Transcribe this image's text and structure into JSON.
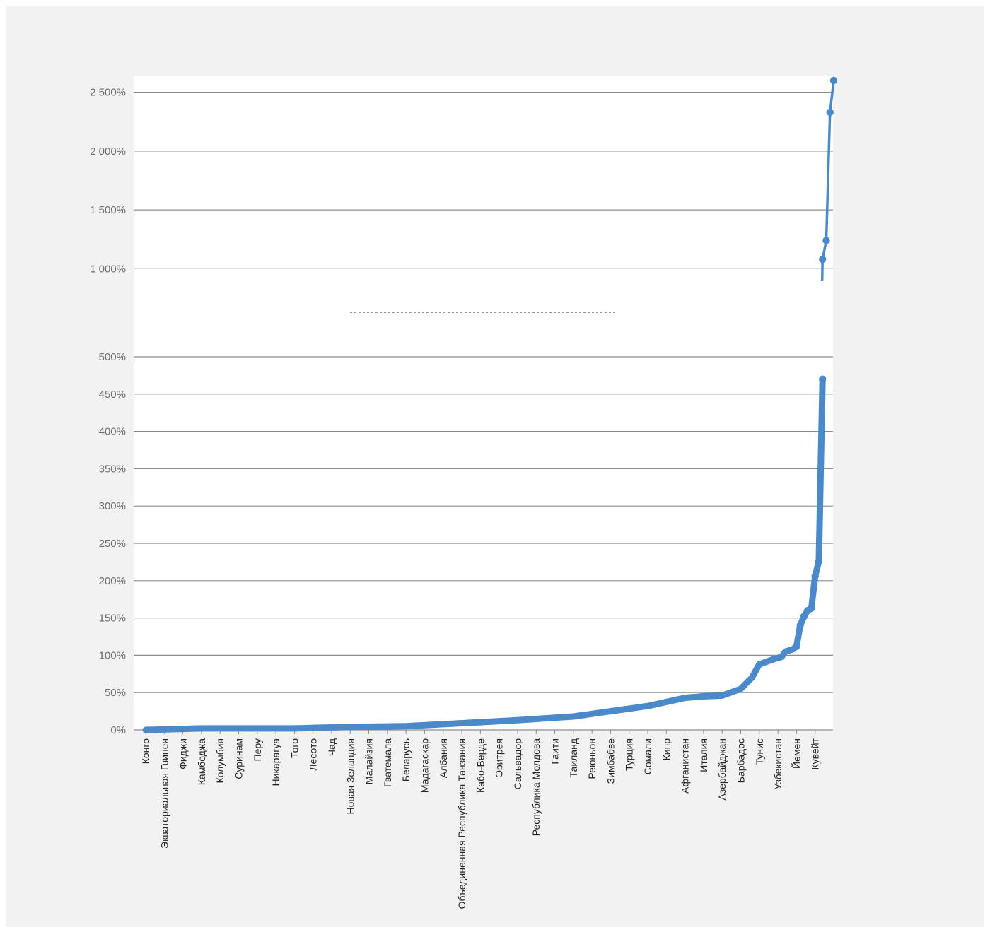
{
  "chart_data": {
    "type": "line",
    "title": "",
    "xlabel": "",
    "ylabel": "",
    "grid": true,
    "legend": "none",
    "color": "#4a8acb",
    "axis_break": true,
    "upper_panel": {
      "ylim": [
        900,
        2600
      ],
      "y_ticks": [
        1000,
        1500,
        2000,
        2500
      ],
      "y_tick_labels": [
        "1 000%",
        "1 500%",
        "2 000%",
        "2 500%"
      ]
    },
    "lower_panel": {
      "ylim": [
        0,
        500
      ],
      "y_ticks": [
        0,
        50,
        100,
        150,
        200,
        250,
        300,
        350,
        400,
        450,
        500
      ],
      "y_tick_labels": [
        "0%",
        "50%",
        "100%",
        "150%",
        "200%",
        "250%",
        "300%",
        "350%",
        "400%",
        "450%",
        "500%"
      ]
    },
    "n_points": 186,
    "category_labels": [
      {
        "index": 0,
        "label": "Конго"
      },
      {
        "index": 5,
        "label": "Экваториальная Гвинея"
      },
      {
        "index": 10,
        "label": "Фиджи"
      },
      {
        "index": 15,
        "label": "Камбоджа"
      },
      {
        "index": 20,
        "label": "Колумбия"
      },
      {
        "index": 25,
        "label": "Суринам"
      },
      {
        "index": 30,
        "label": "Перу"
      },
      {
        "index": 35,
        "label": "Никарагуа"
      },
      {
        "index": 40,
        "label": "Того"
      },
      {
        "index": 45,
        "label": "Лесото"
      },
      {
        "index": 50,
        "label": "Чад"
      },
      {
        "index": 55,
        "label": "Новая Зеландия"
      },
      {
        "index": 60,
        "label": "Малайзия"
      },
      {
        "index": 65,
        "label": "Гватемала"
      },
      {
        "index": 70,
        "label": "Беларусь"
      },
      {
        "index": 75,
        "label": "Мадагаскар"
      },
      {
        "index": 80,
        "label": "Албания"
      },
      {
        "index": 85,
        "label": "Объединенная Республика Танзания"
      },
      {
        "index": 90,
        "label": "Кабо-Верде"
      },
      {
        "index": 95,
        "label": "Эритрея"
      },
      {
        "index": 100,
        "label": "Сальвадор"
      },
      {
        "index": 105,
        "label": "Республика Молдова"
      },
      {
        "index": 110,
        "label": "Гаити"
      },
      {
        "index": 115,
        "label": "Таиланд"
      },
      {
        "index": 120,
        "label": "Реюньон"
      },
      {
        "index": 125,
        "label": "Зимбабве"
      },
      {
        "index": 130,
        "label": "Турция"
      },
      {
        "index": 135,
        "label": "Сомали"
      },
      {
        "index": 140,
        "label": "Кипр"
      },
      {
        "index": 145,
        "label": "Афганистан"
      },
      {
        "index": 150,
        "label": "Италия"
      },
      {
        "index": 155,
        "label": "Азербайджан"
      },
      {
        "index": 160,
        "label": "Барбадос"
      },
      {
        "index": 165,
        "label": "Тунис"
      },
      {
        "index": 170,
        "label": "Узбекистан"
      },
      {
        "index": 175,
        "label": "Йемен"
      },
      {
        "index": 180,
        "label": "Кувейт"
      }
    ],
    "key_points": [
      {
        "x": 0,
        "y": 0
      },
      {
        "x": 15,
        "y": 2
      },
      {
        "x": 40,
        "y": 2
      },
      {
        "x": 55,
        "y": 4
      },
      {
        "x": 70,
        "y": 5
      },
      {
        "x": 85,
        "y": 9
      },
      {
        "x": 100,
        "y": 13
      },
      {
        "x": 115,
        "y": 18
      },
      {
        "x": 125,
        "y": 25
      },
      {
        "x": 135,
        "y": 32
      },
      {
        "x": 145,
        "y": 43
      },
      {
        "x": 150,
        "y": 45
      },
      {
        "x": 155,
        "y": 46
      },
      {
        "x": 160,
        "y": 55
      },
      {
        "x": 163,
        "y": 70
      },
      {
        "x": 165,
        "y": 88
      },
      {
        "x": 169,
        "y": 95
      },
      {
        "x": 171,
        "y": 98
      },
      {
        "x": 172,
        "y": 105
      },
      {
        "x": 174,
        "y": 108
      },
      {
        "x": 175,
        "y": 112
      },
      {
        "x": 176,
        "y": 140
      },
      {
        "x": 177,
        "y": 152
      },
      {
        "x": 178,
        "y": 160
      },
      {
        "x": 179,
        "y": 163
      },
      {
        "x": 180,
        "y": 206
      },
      {
        "x": 181,
        "y": 226
      },
      {
        "x": 182,
        "y": 470
      },
      {
        "x": 182,
        "y": 1080
      },
      {
        "x": 183,
        "y": 1240
      },
      {
        "x": 184,
        "y": 2330
      },
      {
        "x": 185,
        "y": 2600
      }
    ]
  }
}
